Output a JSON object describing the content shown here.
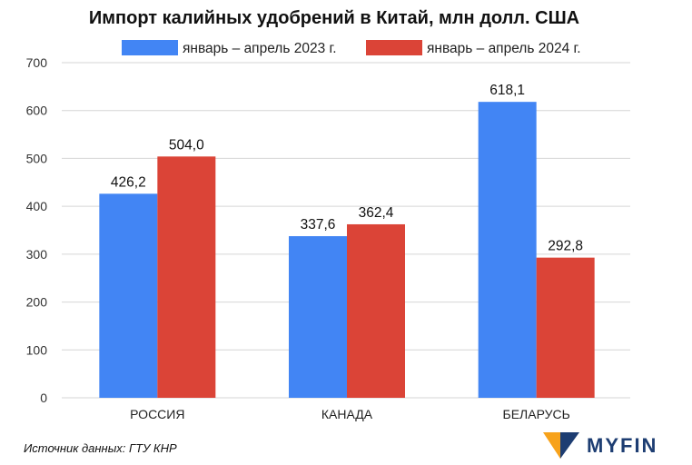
{
  "chart_data": {
    "type": "bar",
    "title": "Импорт калийных удобрений в Китай, млн долл. США",
    "categories": [
      "РОССИЯ",
      "КАНАДА",
      "БЕЛАРУСЬ"
    ],
    "series": [
      {
        "name": "январь – апрель 2023 г.",
        "color": "#4285f4",
        "values": [
          426.2,
          337.6,
          618.1
        ],
        "labels": [
          "426,2",
          "337,6",
          "618,1"
        ]
      },
      {
        "name": "январь – апрель 2024 г.",
        "color": "#db4437",
        "values": [
          504.0,
          362.4,
          292.8
        ],
        "labels": [
          "504,0",
          "362,4",
          "292,8"
        ]
      }
    ],
    "yticks": [
      "0",
      "100",
      "200",
      "300",
      "400",
      "500",
      "600",
      "700"
    ],
    "ylim": [
      0,
      700
    ],
    "grid": true,
    "legend_position": "top"
  },
  "source": "Источник данных: ГТУ КНР",
  "brand": {
    "name": "MYFIN",
    "logo_colors": [
      "#f7a21b",
      "#1d3d72"
    ]
  }
}
